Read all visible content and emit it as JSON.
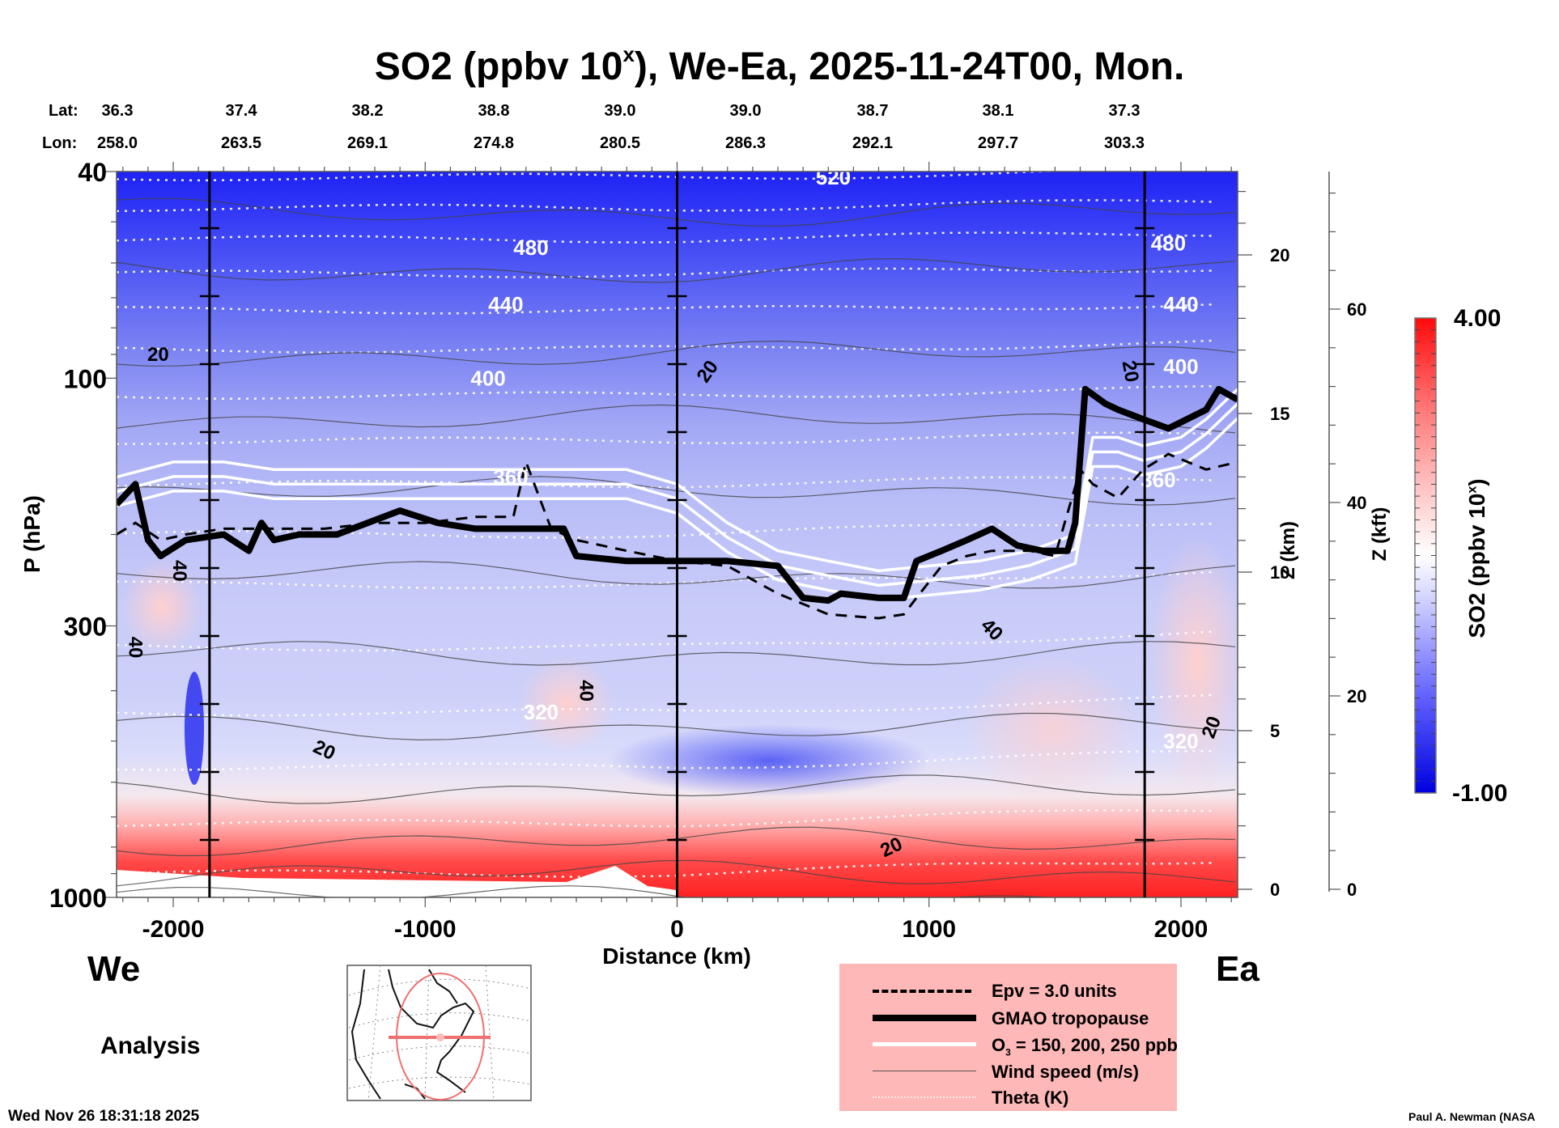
{
  "header": {
    "title_prefix": "SO2 (ppbv 10",
    "title_sup": "x",
    "title_suffix": "), We-Ea, 2025-11-24T00, Mon.",
    "lat_label": "Lat:",
    "lon_label": "Lon:",
    "lats": [
      "36.3",
      "37.4",
      "38.2",
      "38.8",
      "39.0",
      "39.0",
      "38.7",
      "38.1",
      "37.3"
    ],
    "lons": [
      "258.0",
      "263.5",
      "269.1",
      "274.8",
      "280.5",
      "286.3",
      "292.1",
      "297.7",
      "303.3"
    ]
  },
  "labels": {
    "west": "We",
    "east": "Ea",
    "analysis": "Analysis",
    "timestamp": "Wed Nov 26 18:31:18 2025",
    "credit": "Paul A. Newman (NASA"
  },
  "legend": {
    "items": [
      {
        "label": "Epv = 3.0 units",
        "style": "dashed-black"
      },
      {
        "label": "GMAO tropopause",
        "style": "thick-black"
      },
      {
        "label_main": "O",
        "label_sub": "3",
        "label_rest": " = 150, 200, 250 ppb",
        "style": "white"
      },
      {
        "label": "Wind speed (m/s)",
        "style": "thin-gray"
      },
      {
        "label": "Theta (K)",
        "style": "dotted-white"
      }
    ]
  },
  "colorbar": {
    "max_label": "4.00",
    "min_label": "-1.00",
    "title_prefix": "SO2 (ppbv 10",
    "title_sup": "x",
    "title_suffix": ")",
    "colors": {
      "low": "#0000ff",
      "mid": "#ffffff",
      "high": "#ff0000"
    }
  },
  "chart_data": {
    "type": "heatmap",
    "title": "SO2 (ppbv 10^x), We-Ea, 2025-11-24T00, Mon.",
    "xlabel": "Distance (km)",
    "ylabel": "P (hPa)",
    "y2label": "Z (km)",
    "y3label": "Z (kft)",
    "xlim": [
      -2225,
      2225
    ],
    "ylim": [
      1000,
      40
    ],
    "yscale": "log",
    "x_ticks": [
      -2000,
      -1000,
      0,
      1000,
      2000
    ],
    "x_tick_labels": [
      "-2000",
      "-1000",
      "0",
      "1000",
      "2000"
    ],
    "y_ticks": [
      40,
      100,
      300,
      1000
    ],
    "y_tick_labels": [
      "40",
      "100",
      "300",
      "1000"
    ],
    "zkm_ticks": [
      0,
      5,
      10,
      15,
      20
    ],
    "zkm_tick_labels": [
      "0",
      "5",
      "10",
      "15",
      "20"
    ],
    "zkft_ticks": [
      0,
      20,
      40,
      60
    ],
    "zkft_tick_labels": [
      "0",
      "20",
      "40",
      "60"
    ],
    "colorbar_range": [
      -1.0,
      4.0
    ],
    "vertical_markers_km": [
      -1856,
      0,
      1856
    ],
    "theta_labels": [
      {
        "text": "520",
        "x": 620,
        "p": 41
      },
      {
        "text": "480",
        "x": -580,
        "p": 56
      },
      {
        "text": "480",
        "x": 1950,
        "p": 55
      },
      {
        "text": "440",
        "x": -680,
        "p": 72
      },
      {
        "text": "440",
        "x": 2000,
        "p": 72
      },
      {
        "text": "400",
        "x": -750,
        "p": 100
      },
      {
        "text": "400",
        "x": 2000,
        "p": 95
      },
      {
        "text": "360",
        "x": -660,
        "p": 155
      },
      {
        "text": "360",
        "x": 1910,
        "p": 157
      },
      {
        "text": "320",
        "x": -540,
        "p": 440
      },
      {
        "text": "320",
        "x": 2000,
        "p": 500
      }
    ],
    "wind_labels": [
      {
        "text": "20",
        "x": -2060,
        "p": 90,
        "rot": 0
      },
      {
        "text": "20",
        "x": 120,
        "p": 97,
        "rot": -55
      },
      {
        "text": "20",
        "x": 1800,
        "p": 97,
        "rot": 80
      },
      {
        "text": "40",
        "x": -1975,
        "p": 235,
        "rot": 90
      },
      {
        "text": "40",
        "x": -2150,
        "p": 330,
        "rot": 90
      },
      {
        "text": "40",
        "x": -360,
        "p": 400,
        "rot": 90
      },
      {
        "text": "40",
        "x": 1250,
        "p": 305,
        "rot": 45
      },
      {
        "text": "20",
        "x": -1400,
        "p": 520,
        "rot": 25
      },
      {
        "text": "20",
        "x": 850,
        "p": 800,
        "rot": -25
      },
      {
        "text": "20",
        "x": 2120,
        "p": 470,
        "rot": -70
      }
    ],
    "tropopause_hpa": {
      "x": [
        -2225,
        -2150,
        -2100,
        -2050,
        -1950,
        -1800,
        -1700,
        -1650,
        -1600,
        -1500,
        -1350,
        -1100,
        -950,
        -800,
        -600,
        -450,
        -400,
        -200,
        0,
        200,
        400,
        500,
        600,
        650,
        800,
        900,
        950,
        1050,
        1150,
        1250,
        1350,
        1450,
        1550,
        1580,
        1620,
        1700,
        1750,
        1850,
        1950,
        2100,
        2150,
        2225
      ],
      "p": [
        175,
        160,
        205,
        220,
        205,
        200,
        215,
        190,
        205,
        200,
        200,
        180,
        190,
        195,
        195,
        195,
        220,
        225,
        225,
        225,
        230,
        265,
        268,
        260,
        265,
        265,
        225,
        215,
        205,
        195,
        210,
        215,
        215,
        190,
        105,
        112,
        115,
        120,
        125,
        115,
        105,
        110
      ]
    },
    "epv_hpa": {
      "x": [
        -2225,
        -2150,
        -2050,
        -1950,
        -1800,
        -1600,
        -1400,
        -1200,
        -1000,
        -800,
        -650,
        -600,
        -500,
        -400,
        -200,
        0,
        200,
        400,
        600,
        800,
        900,
        950,
        1050,
        1150,
        1250,
        1400,
        1500,
        1600,
        1650,
        1750,
        1850,
        1950,
        2100,
        2225
      ],
      "p": [
        200,
        190,
        205,
        200,
        195,
        195,
        195,
        190,
        190,
        185,
        185,
        145,
        195,
        205,
        215,
        225,
        230,
        260,
        285,
        290,
        285,
        265,
        230,
        220,
        215,
        215,
        220,
        150,
        160,
        170,
        150,
        140,
        150,
        145
      ]
    },
    "o3_150_hpa": {
      "x": [
        -2225,
        -2000,
        -1800,
        -1600,
        -1400,
        -1200,
        -1000,
        -800,
        -600,
        -400,
        -200,
        0,
        200,
        400,
        600,
        800,
        1000,
        1200,
        1400,
        1580,
        1650,
        1750,
        1850,
        2000,
        2100,
        2225
      ],
      "p": [
        155,
        145,
        145,
        150,
        150,
        150,
        150,
        150,
        150,
        150,
        150,
        160,
        190,
        215,
        225,
        235,
        230,
        225,
        215,
        200,
        130,
        130,
        135,
        130,
        120,
        105
      ]
    },
    "wind_speed_levels_ms": [
      20,
      40
    ],
    "theta_levels_K": [
      320,
      360,
      400,
      440,
      480,
      520
    ]
  }
}
